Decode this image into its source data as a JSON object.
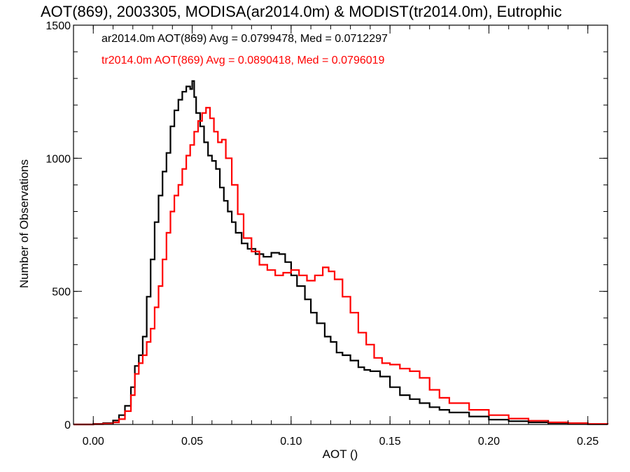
{
  "chart_data": {
    "type": "line",
    "title": "AOT(869), 2003305, MODISA(ar2014.0m) & MODIST(tr2014.0m), Eutrophic",
    "xlabel": "AOT ()",
    "ylabel": "Number of Observations",
    "xlim": [
      -0.01,
      0.26
    ],
    "ylim": [
      0,
      1500
    ],
    "xticks": [
      0.0,
      0.05,
      0.1,
      0.15,
      0.2,
      0.25
    ],
    "xtick_labels": [
      "0.00",
      "0.05",
      "0.10",
      "0.15",
      "0.20",
      "0.25"
    ],
    "yticks": [
      0,
      500,
      1000,
      1500
    ],
    "ytick_labels": [
      "0",
      "500",
      "1000",
      "1500"
    ],
    "style": "step",
    "series": [
      {
        "name": "ar2014.0m",
        "color": "#000000",
        "legend": "ar2014.0m AOT(869) Avg = 0.0799478, Med = 0.0712297",
        "x": [
          -0.01,
          0.0,
          0.005,
          0.01,
          0.013,
          0.016,
          0.019,
          0.021,
          0.023,
          0.025,
          0.027,
          0.029,
          0.031,
          0.033,
          0.035,
          0.037,
          0.039,
          0.041,
          0.043,
          0.045,
          0.047,
          0.049,
          0.05,
          0.051,
          0.052,
          0.054,
          0.056,
          0.058,
          0.06,
          0.062,
          0.064,
          0.066,
          0.068,
          0.07,
          0.072,
          0.075,
          0.078,
          0.082,
          0.086,
          0.09,
          0.094,
          0.097,
          0.1,
          0.103,
          0.107,
          0.11,
          0.113,
          0.117,
          0.12,
          0.123,
          0.126,
          0.13,
          0.134,
          0.137,
          0.14,
          0.145,
          0.15,
          0.155,
          0.16,
          0.165,
          0.17,
          0.175,
          0.18,
          0.19,
          0.2,
          0.21,
          0.22,
          0.23,
          0.24,
          0.25,
          0.26
        ],
        "values": [
          0,
          2,
          5,
          15,
          35,
          70,
          140,
          220,
          260,
          330,
          480,
          620,
          760,
          860,
          950,
          1020,
          1120,
          1180,
          1220,
          1250,
          1270,
          1260,
          1290,
          1230,
          1170,
          1120,
          1060,
          1010,
          990,
          960,
          890,
          840,
          800,
          760,
          720,
          680,
          660,
          640,
          630,
          645,
          640,
          610,
          560,
          520,
          470,
          420,
          380,
          330,
          310,
          270,
          260,
          240,
          215,
          205,
          200,
          180,
          140,
          110,
          95,
          80,
          65,
          55,
          45,
          30,
          18,
          12,
          8,
          5,
          3,
          1,
          0
        ]
      },
      {
        "name": "tr2014.0m",
        "color": "#ff0000",
        "legend": "tr2014.0m AOT(869) Avg = 0.0890418, Med = 0.0796019",
        "x": [
          -0.01,
          0.0,
          0.005,
          0.01,
          0.013,
          0.016,
          0.019,
          0.021,
          0.023,
          0.025,
          0.027,
          0.029,
          0.031,
          0.033,
          0.035,
          0.037,
          0.039,
          0.041,
          0.043,
          0.045,
          0.047,
          0.049,
          0.051,
          0.053,
          0.055,
          0.057,
          0.059,
          0.061,
          0.063,
          0.065,
          0.067,
          0.07,
          0.073,
          0.076,
          0.08,
          0.084,
          0.088,
          0.092,
          0.096,
          0.1,
          0.104,
          0.108,
          0.112,
          0.116,
          0.119,
          0.122,
          0.126,
          0.13,
          0.134,
          0.138,
          0.142,
          0.146,
          0.15,
          0.155,
          0.16,
          0.165,
          0.17,
          0.175,
          0.18,
          0.19,
          0.2,
          0.21,
          0.22,
          0.23,
          0.24,
          0.25,
          0.26
        ],
        "values": [
          0,
          1,
          3,
          8,
          20,
          50,
          110,
          190,
          230,
          260,
          310,
          360,
          440,
          520,
          620,
          720,
          800,
          860,
          900,
          960,
          1010,
          1050,
          1100,
          1140,
          1170,
          1190,
          1150,
          1100,
          1060,
          1070,
          1000,
          900,
          790,
          700,
          650,
          600,
          580,
          560,
          570,
          580,
          560,
          540,
          560,
          590,
          575,
          545,
          480,
          420,
          345,
          300,
          250,
          230,
          225,
          210,
          200,
          175,
          130,
          100,
          80,
          55,
          35,
          22,
          14,
          8,
          5,
          2,
          0
        ]
      }
    ]
  }
}
